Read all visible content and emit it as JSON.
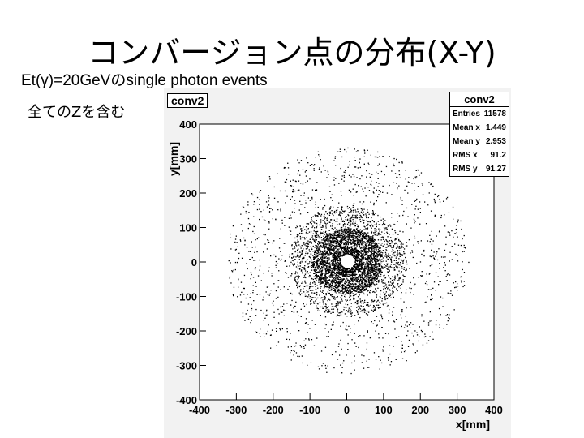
{
  "slide": {
    "title": "コンバージョン点の分布(X-Y)",
    "subtitle": "Et(γ)=20GeVのsingle photon events",
    "note": "全てのZを含む"
  },
  "histogram": {
    "name": "conv2",
    "stats": {
      "title": "conv2",
      "rows": [
        {
          "label": "Entries",
          "value": "11578"
        },
        {
          "label": "Mean x",
          "value": "1.449"
        },
        {
          "label": "Mean y",
          "value": "2.953"
        },
        {
          "label": "RMS x",
          "value": "91.2"
        },
        {
          "label": "RMS y",
          "value": "91.27"
        }
      ]
    }
  },
  "chart_data": {
    "type": "scatter",
    "title": "",
    "xlabel": "x[mm]",
    "ylabel": "y[mm]",
    "xlim": [
      -400,
      400
    ],
    "ylim": [
      -400,
      400
    ],
    "x_ticks": [
      -400,
      -300,
      -200,
      -100,
      0,
      100,
      200,
      300,
      400
    ],
    "y_ticks": [
      -400,
      -300,
      -200,
      -100,
      0,
      100,
      200,
      300,
      400
    ],
    "point_color": "#000000",
    "entries": 11578,
    "mean_x": 1.449,
    "mean_y": 2.953,
    "rms_x": 91.2,
    "rms_y": 91.27,
    "distribution": {
      "description_rings_radius_mm": [
        {
          "r_min": 20,
          "r_max": 45,
          "density": "high"
        },
        {
          "r_min": 50,
          "r_max": 95,
          "density": "very high"
        },
        {
          "r_min": 95,
          "r_max": 160,
          "density": "medium"
        },
        {
          "r_min": 160,
          "r_max": 330,
          "density": "low"
        }
      ]
    }
  }
}
